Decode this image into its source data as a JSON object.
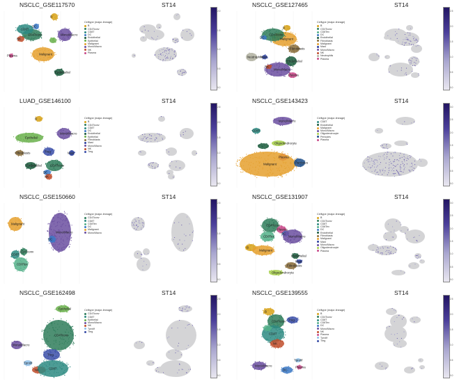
{
  "gene": "ST14",
  "legend_title": "Celltype (major-lineage)",
  "colorbar_max_color": "#231663",
  "colorbar_min_color": "#e9e7f0",
  "panels": [
    {
      "title": "NSCLC_GSE117570",
      "celltypes": [
        "B",
        "CD4Tconv",
        "CD8T",
        "DC",
        "Endothelial",
        "Epithelial",
        "Malignant",
        "Mono/Macro",
        "NK",
        "Plasma"
      ],
      "labels": [
        "B",
        "CD4Tconv",
        "CD8T",
        "DC",
        "Mono/Macro",
        "Malignant",
        "Endothelial",
        "Plasma",
        "NK"
      ],
      "colorbar_ticks": [
        "2.0",
        "1.5",
        "1.0",
        "0.5",
        "0.0"
      ]
    },
    {
      "title": "NSCLC_GSE127465",
      "celltypes": [
        "B",
        "CD4Tconv",
        "CD8Tex",
        "DC",
        "Endothelial",
        "Fibroblasts",
        "Malignant",
        "Mast",
        "Mono/Macro",
        "NK",
        "Neutrophils",
        "Plasma"
      ],
      "labels": [
        "Malignant",
        "CD4Tconv",
        "Fibroblasts",
        "Endothelial",
        "DC",
        "Neutrophils",
        "Mast",
        "Mono/Macro",
        "Plasma",
        "B",
        "NK"
      ],
      "colorbar_ticks": [
        "2.5",
        "2.0",
        "1.5",
        "1.0",
        "0.5",
        "0.0"
      ]
    },
    {
      "title": "LUAD_GSE146100",
      "celltypes": [
        "B",
        "CD4Tconv",
        "CD8T",
        "DC",
        "Endothelial",
        "Epithelial",
        "Fibroblasts",
        "Mast",
        "Mono/Macro",
        "NK",
        "Treg"
      ],
      "labels": [
        "B",
        "Epithelial",
        "Mono/Macro",
        "Mast",
        "Fibroblasts",
        "Treg",
        "CD4Tconv",
        "Endothelial",
        "DC",
        "NK"
      ],
      "colorbar_ticks": [
        "2.5",
        "2.0",
        "1.5",
        "1.0",
        "0.5",
        "0.0"
      ]
    },
    {
      "title": "NSCLC_GSE143423",
      "celltypes": [
        "CD8T",
        "Endothelial",
        "Malignant",
        "Mono/Macro",
        "Oligodendrocyte",
        "Pericytes",
        "Plasma"
      ],
      "labels": [
        "Mono/Macro",
        "CD8T",
        "Oligodendrocyte",
        "Plasma",
        "Malignant",
        "Pericytes"
      ],
      "colorbar_ticks": [
        "3.0",
        "2.5",
        "2.0",
        "1.5",
        "1.0",
        "0.5",
        "0.0"
      ]
    },
    {
      "title": "NSCLC_GSE150660",
      "celltypes": [
        "CD4Tconv",
        "CD8T",
        "CD8Tex",
        "DC",
        "Malignant",
        "Mono/Macro"
      ],
      "labels": [
        "Malignant",
        "Mono/Macro",
        "DC",
        "CD8T",
        "CD4Tconv",
        "CD8Tex"
      ],
      "colorbar_ticks": [
        "2.5",
        "2.0",
        "1.5",
        "1.0",
        "0.5",
        "0.0"
      ]
    },
    {
      "title": "NSCLC_GSE131907",
      "celltypes": [
        "B",
        "CD4Tconv",
        "CD8T",
        "CD8Tex",
        "DC",
        "Endothelial",
        "Fibroblasts",
        "Malignant",
        "Mast",
        "Mono/Macro",
        "Oligodendrocyte",
        "Plasma"
      ],
      "labels": [
        "CD4Tconv",
        "CD8Tex",
        "Plasma",
        "DC",
        "Mono/Macro",
        "B",
        "Malignant",
        "Endothelial",
        "Mast",
        "Fibroblasts",
        "Oligodendrocyte"
      ],
      "colorbar_ticks": [
        "3.0",
        "2.5",
        "2.0",
        "1.5",
        "1.0",
        "0.5",
        "0.0"
      ]
    },
    {
      "title": "NSCLC_GSE162498",
      "celltypes": [
        "CD4Tconv",
        "CD8T",
        "Epithelial",
        "Mono/Macro",
        "NK",
        "Tprolif",
        "Treg"
      ],
      "labels": [
        "Epithelial",
        "CD4Tconv",
        "Mono/Macro",
        "Treg",
        "Tprolif",
        "NK",
        "CD8T"
      ],
      "colorbar_ticks": [
        "2.5",
        "2.0",
        "1.5",
        "1.0",
        "0.5",
        "0.0"
      ]
    },
    {
      "title": "NSCLC_GSE139555",
      "celltypes": [
        "B",
        "CD4Tconv",
        "CD8T",
        "CD8Tex",
        "DC",
        "Mono/Macro",
        "NK",
        "Plasma",
        "Tprolif",
        "Treg"
      ],
      "labels": [
        "B",
        "CD4Tconv",
        "Treg",
        "CD8T",
        "NK",
        "Mono/Macro",
        "DC",
        "Tprolif",
        "Plasma"
      ],
      "colorbar_ticks": [
        "2.5",
        "2.0",
        "1.5",
        "1.0",
        "0.5",
        "0.0"
      ]
    }
  ],
  "chart_data": {
    "type": "scatter",
    "description_source": "UMAP embeddings per dataset, colored by major-lineage and by ST14 expression",
    "datasets": [
      "NSCLC_GSE117570",
      "NSCLC_GSE127465",
      "LUAD_GSE146100",
      "NSCLC_GSE143423",
      "NSCLC_GSE150660",
      "NSCLC_GSE131907",
      "NSCLC_GSE162498",
      "NSCLC_GSE139555"
    ],
    "expression_feature": "ST14",
    "colorbar_ranges": [
      [
        0,
        2.0
      ],
      [
        0,
        2.5
      ],
      [
        0,
        2.5
      ],
      [
        0,
        3.0
      ],
      [
        0,
        2.5
      ],
      [
        0,
        3.0
      ],
      [
        0,
        2.5
      ],
      [
        0,
        2.5
      ]
    ],
    "legend_placement": "right of each cluster plot"
  },
  "palette": {
    "B": "#d7a21a",
    "CD4Tconv": "#2f7d5b",
    "CD8T": "#2e8b82",
    "CD8Tex": "#55b08a",
    "DC": "#3b78c4",
    "Endothelial": "#1a5a3c",
    "Epithelial": "#6ab04c",
    "Fibroblasts": "#8a6d3b",
    "Malignant": "#e5a02e",
    "Mast": "#2a3f9e",
    "Mono/Macro": "#6b4fa0",
    "NK": "#c04e2c",
    "Neutrophils": "#b0b0a0",
    "Oligodendrocyte": "#a8d04c",
    "Pericytes": "#1f4f8a",
    "Plasma": "#c94a8a",
    "Tprolif": "#8fc0e8",
    "Treg": "#3b4fa8"
  }
}
